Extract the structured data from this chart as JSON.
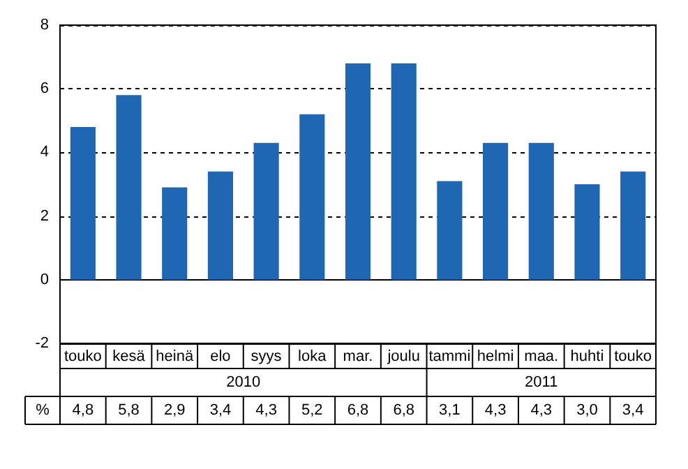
{
  "chart_data": {
    "type": "bar",
    "categories": [
      "touko",
      "kesä",
      "heinä",
      "elo",
      "syys",
      "loka",
      "mar.",
      "joulu",
      "tammi",
      "helmi",
      "maa.",
      "huhti",
      "touko"
    ],
    "values": [
      4.8,
      5.8,
      2.9,
      3.4,
      4.3,
      5.2,
      6.8,
      6.8,
      3.1,
      4.3,
      4.3,
      3.0,
      3.4
    ],
    "value_labels": [
      "4,8",
      "5,8",
      "2,9",
      "3,4",
      "4,3",
      "5,2",
      "6,8",
      "6,8",
      "3,1",
      "4,3",
      "4,3",
      "3,0",
      "3,4"
    ],
    "color": "#1f66b3",
    "ylim": [
      -2,
      8
    ],
    "yticks": [
      -2,
      0,
      2,
      4,
      6,
      8
    ],
    "grid": "y",
    "annotations": [
      "2010",
      "2011",
      "%"
    ]
  }
}
